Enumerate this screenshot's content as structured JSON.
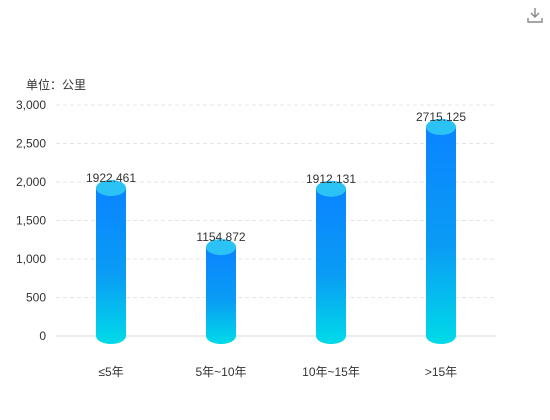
{
  "toolbar": {
    "download_icon": "download-icon"
  },
  "chart_data": {
    "type": "bar",
    "unit_label": "单位：公里",
    "categories": [
      "≤5年",
      "5年~10年",
      "10年~15年",
      ">15年"
    ],
    "values": [
      1922.461,
      1154.872,
      1912.131,
      2715.125
    ],
    "value_labels": [
      "1922.461",
      "1154.872",
      "1912.131",
      "2715.125"
    ],
    "ylim": [
      0,
      3000
    ],
    "yticks": [
      0,
      500,
      1000,
      1500,
      2000,
      2500,
      3000
    ],
    "ytick_labels": [
      "0",
      "500",
      "1,000",
      "1,500",
      "2,000",
      "2,500",
      "3,000"
    ],
    "grid": true,
    "colors": {
      "bar_top": "#0a84ff",
      "bar_bottom": "#00dbe8",
      "cap": "#2bc3f5",
      "grid": "#e3e6eb",
      "text": "#333333"
    }
  }
}
